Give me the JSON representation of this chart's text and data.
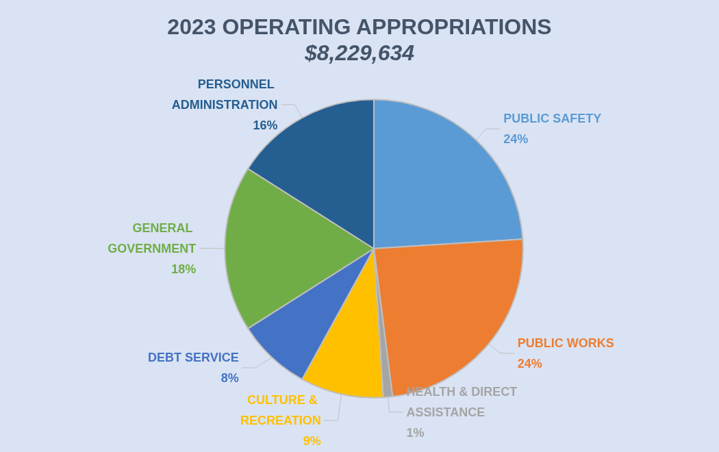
{
  "chart_data": {
    "type": "pie",
    "title": "2023 OPERATING APPROPRIATIONS",
    "subtitle": "$8,229,634",
    "categories": [
      "PUBLIC SAFETY",
      "PUBLIC WORKS",
      "HEALTH & DIRECT ASSISTANCE",
      "CULTURE & RECREATION",
      "DEBT SERVICE",
      "GENERAL GOVERNMENT",
      "PERSONNEL ADMINISTRATION"
    ],
    "values": [
      24,
      24,
      1,
      9,
      8,
      18,
      16
    ],
    "value_labels": [
      "24%",
      "24%",
      "1%",
      "9%",
      "8%",
      "18%",
      "16%"
    ],
    "colors": [
      "#5b9bd5",
      "#ed7d31",
      "#a5a5a5",
      "#ffc000",
      "#4472c4",
      "#70ad47",
      "#255e91"
    ],
    "legend": false
  }
}
